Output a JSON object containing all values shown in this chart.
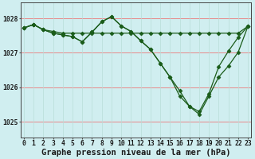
{
  "title": "Graphe pression niveau de la mer (hPa)",
  "xlabel_ticks": [
    "0",
    "1",
    "2",
    "3",
    "4",
    "5",
    "6",
    "7",
    "8",
    "9",
    "10",
    "11",
    "12",
    "13",
    "14",
    "15",
    "16",
    "17",
    "18",
    "19",
    "20",
    "21",
    "22",
    "23"
  ],
  "yticks": [
    1025,
    1026,
    1027,
    1028
  ],
  "ylim": [
    1024.55,
    1028.45
  ],
  "xlim": [
    -0.3,
    23.3
  ],
  "bg_color": "#d0eef0",
  "line_color": "#1a5c1a",
  "grid_color_h": "#e88888",
  "grid_color_v": "#b8ddd8",
  "series": [
    {
      "x": [
        0,
        1,
        2,
        3,
        4,
        5,
        6,
        7,
        8,
        9,
        10,
        11,
        12,
        13,
        14,
        15,
        16,
        17,
        18,
        19,
        20,
        21,
        22,
        23
      ],
      "y": [
        1027.72,
        1027.82,
        1027.67,
        1027.62,
        1027.57,
        1027.57,
        1027.57,
        1027.57,
        1027.57,
        1027.57,
        1027.57,
        1027.57,
        1027.57,
        1027.57,
        1027.57,
        1027.57,
        1027.57,
        1027.57,
        1027.57,
        1027.57,
        1027.57,
        1027.57,
        1027.57,
        1027.77
      ]
    },
    {
      "x": [
        0,
        1,
        2,
        3,
        4,
        5,
        6,
        7,
        8,
        9,
        10,
        11,
        12,
        13,
        14,
        15,
        16,
        17,
        18,
        19,
        20,
        21,
        22,
        23
      ],
      "y": [
        1027.72,
        1027.82,
        1027.67,
        1027.57,
        1027.52,
        1027.47,
        1027.32,
        1027.6,
        1027.9,
        1028.05,
        1027.78,
        1027.62,
        1027.35,
        1027.1,
        1026.7,
        1026.3,
        1025.9,
        1025.45,
        1025.3,
        1025.82,
        1026.6,
        1027.05,
        1027.45,
        1027.77
      ]
    },
    {
      "x": [
        0,
        1,
        2,
        3,
        4,
        5,
        6,
        7,
        8,
        9,
        10,
        11,
        12,
        13,
        14,
        15,
        16,
        17,
        18,
        19,
        20,
        21,
        22,
        23
      ],
      "y": [
        1027.72,
        1027.82,
        1027.67,
        1027.57,
        1027.52,
        1027.47,
        1027.32,
        1027.6,
        1027.9,
        1028.05,
        1027.78,
        1027.62,
        1027.35,
        1027.1,
        1026.7,
        1026.3,
        1025.75,
        1025.45,
        1025.22,
        1025.75,
        1026.3,
        1026.62,
        1027.02,
        1027.77
      ]
    }
  ],
  "marker": "D",
  "marker_size": 2.5,
  "line_width": 0.9,
  "tick_fontsize": 5.8,
  "title_fontsize": 7.5,
  "title_bold": true,
  "tick_color": "#1a1a1a"
}
